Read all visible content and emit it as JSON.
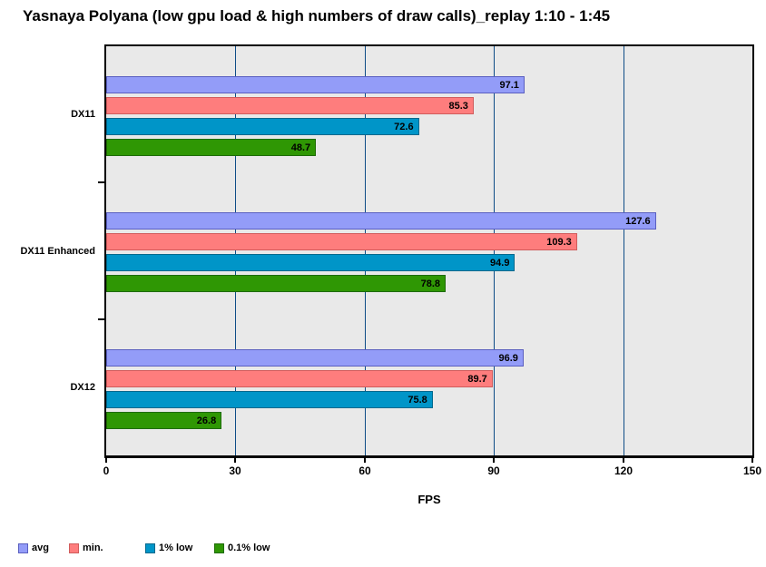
{
  "title": "Yasnaya Polyana (low gpu load & high numbers of draw calls)_replay 1:10 - 1:45",
  "chart_data": {
    "type": "bar",
    "orientation": "horizontal",
    "title": "Yasnaya Polyana (low gpu load & high numbers of draw calls)_replay 1:10 - 1:45",
    "categories": [
      "DX11",
      "DX11 Enhanced",
      "DX12"
    ],
    "series": [
      {
        "name": "avg",
        "color": "#939cf8",
        "border_color": "#5a5fc0",
        "values": [
          97.1,
          127.6,
          96.9
        ]
      },
      {
        "name": "min.",
        "color": "#fe7d7d",
        "border_color": "#d05c5c",
        "values": [
          85.3,
          109.3,
          89.7
        ]
      },
      {
        "name": "1% low",
        "color": "#0095c8",
        "border_color": "#00688c",
        "values": [
          72.6,
          94.9,
          75.8
        ]
      },
      {
        "name": "0.1% low",
        "color": "#2f9704",
        "border_color": "#1e6b02",
        "values": [
          48.7,
          78.8,
          26.8
        ]
      }
    ],
    "value_labels": [
      [
        "97.1",
        "127.6",
        "96.9"
      ],
      [
        "85.3",
        "109.3",
        "89.7"
      ],
      [
        "72.6",
        "94.9",
        "75.8"
      ],
      [
        "48.7",
        "78.8",
        "26.8"
      ]
    ],
    "xlabel": "FPS",
    "xlim": [
      0,
      150
    ],
    "xticks": [
      0,
      30,
      60,
      90,
      120,
      150
    ],
    "xtick_labels": [
      "0",
      "30",
      "60",
      "90",
      "120",
      "150"
    ],
    "grid": true,
    "legend_position": "bottom-left",
    "colors": {
      "plot_background": "#e9e9e9",
      "gridline": "#0e4d87",
      "axis": "#000000",
      "text": "#000000",
      "page_background": "#ffffff"
    }
  }
}
